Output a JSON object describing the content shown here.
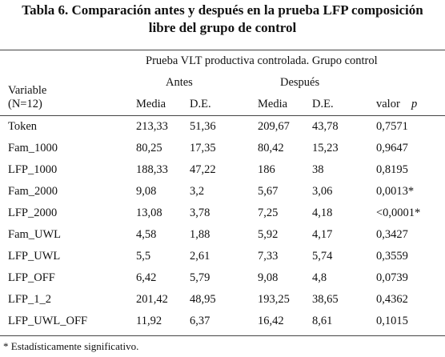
{
  "title_lines": [
    "Tabla 6. Comparación antes y después en la prueba LFP composición",
    "libre del grupo de control"
  ],
  "table": {
    "group_header": "Prueba VLT productiva controlada. Grupo control",
    "antes": "Antes",
    "despues": "Después",
    "variable_header": [
      "Variable",
      "(N=12)"
    ],
    "subheaders": [
      "Media",
      "D.E.",
      "Media",
      "D.E."
    ],
    "pvalue_header": {
      "text": "valor",
      "italic": "p"
    },
    "rows": [
      [
        "Token",
        "213,33",
        "51,36",
        "209,67",
        "43,78",
        "0,7571"
      ],
      [
        "Fam_1000",
        "80,25",
        "17,35",
        "80,42",
        "15,23",
        "0,9647"
      ],
      [
        "LFP_1000",
        "188,33",
        "47,22",
        "186",
        "38",
        "0,8195"
      ],
      [
        "Fam_2000",
        "9,08",
        "3,2",
        "5,67",
        "3,06",
        "0,0013*"
      ],
      [
        "LFP_2000",
        "13,08",
        "3,78",
        "7,25",
        "4,18",
        "<0,0001*"
      ],
      [
        "Fam_UWL",
        "4,58",
        "1,88",
        "5,92",
        "4,17",
        "0,3427"
      ],
      [
        "LFP_UWL",
        "5,5",
        "2,61",
        "7,33",
        "5,74",
        "0,3559"
      ],
      [
        "LFP_OFF",
        "6,42",
        "5,79",
        "9,08",
        "4,8",
        "0,0739"
      ],
      [
        "LFP_1_2",
        "201,42",
        "48,95",
        "193,25",
        "38,65",
        "0,4362"
      ],
      [
        "LFP_UWL_OFF",
        "11,92",
        "6,37",
        "16,42",
        "8,61",
        "0,1015"
      ]
    ]
  },
  "footnote": "* Estadísticamente significativo."
}
